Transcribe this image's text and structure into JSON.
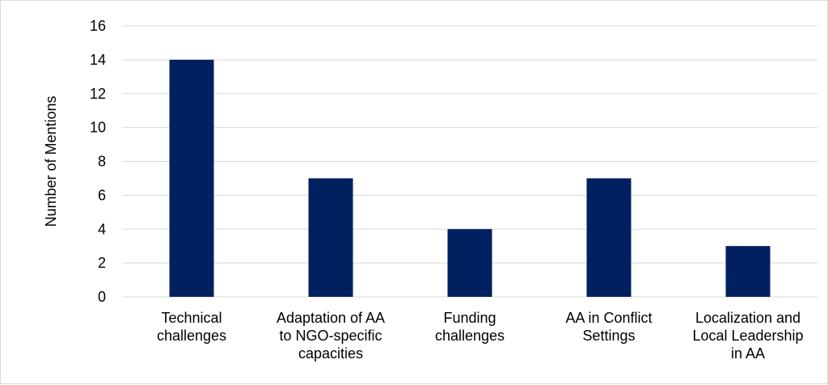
{
  "chart_data": {
    "type": "bar",
    "title": "",
    "xlabel": "",
    "ylabel": "Number of Mentions",
    "ylim": [
      0,
      16
    ],
    "yticks": [
      0,
      2,
      4,
      6,
      8,
      10,
      12,
      14,
      16
    ],
    "grid": true,
    "legend": "none",
    "bar_color": "#002060",
    "grid_color": "#d9d9d9",
    "categories": [
      [
        "Technical",
        "challenges"
      ],
      [
        "Adaptation of AA",
        "to NGO-specific",
        "capacities"
      ],
      [
        "Funding",
        "challenges"
      ],
      [
        "AA in Conflict",
        "Settings"
      ],
      [
        "Localization and",
        "Local Leadership",
        "in AA"
      ]
    ],
    "values": [
      14,
      7,
      4,
      7,
      3
    ]
  }
}
